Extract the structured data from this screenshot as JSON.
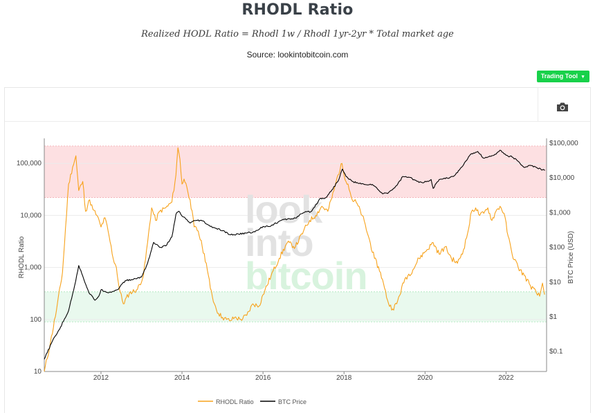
{
  "header": {
    "title": "RHODL Ratio",
    "formula": "Realized HODL Ratio = Rhodl 1w / Rhodl 1yr-2yr * Total market age",
    "source": "Source: lookintobitcoin.com"
  },
  "toolbar": {
    "trading_tool_label": "Trading Tool",
    "caret": "▼"
  },
  "watermark": {
    "line1": "look",
    "line2": "into",
    "line3": "bitcoin"
  },
  "colors": {
    "rhodl": "#f7a21b",
    "btc": "#000000",
    "red_band": "#fde0e2",
    "green_band": "#e9f9ee",
    "button": "#18d14a"
  },
  "chart_data": {
    "type": "line",
    "title": "RHODL Ratio",
    "xlabel": "",
    "ylabel_left": "RHODL Ratio",
    "ylabel_right": "BTC Price (USD)",
    "x_range": [
      2010.6,
      2023.0
    ],
    "x_ticks": [
      {
        "value": 2012,
        "label": "2012"
      },
      {
        "value": 2014,
        "label": "2014"
      },
      {
        "value": 2016,
        "label": "2016"
      },
      {
        "value": 2018,
        "label": "2018"
      },
      {
        "value": 2020,
        "label": "2020"
      },
      {
        "value": 2022,
        "label": "2022"
      }
    ],
    "y_left_scale": "log",
    "y_left_range": [
      10,
      300000
    ],
    "y_left_ticks": [
      {
        "value": 10,
        "label": "10"
      },
      {
        "value": 100,
        "label": "100"
      },
      {
        "value": 1000,
        "label": "1,000"
      },
      {
        "value": 10000,
        "label": "10,000"
      },
      {
        "value": 100000,
        "label": "100,000"
      }
    ],
    "y_right_scale": "log",
    "y_right_range": [
      0.02,
      200000
    ],
    "y_right_ticks": [
      {
        "value": 0.1,
        "label": "$0.1"
      },
      {
        "value": 1,
        "label": "$1"
      },
      {
        "value": 10,
        "label": "$10"
      },
      {
        "value": 100,
        "label": "$100"
      },
      {
        "value": 1000,
        "label": "$1,000"
      },
      {
        "value": 10000,
        "label": "$10,000"
      },
      {
        "value": 100000,
        "label": "$100,000"
      }
    ],
    "bands": [
      {
        "name": "overheated",
        "axis": "left",
        "from": 22000,
        "to": 250000,
        "color": "#fde0e2"
      },
      {
        "name": "undervalued",
        "axis": "left",
        "from": 90,
        "to": 340,
        "color": "#e9f9ee"
      }
    ],
    "legend_position": "bottom-center",
    "series": [
      {
        "name": "RHODL Ratio",
        "axis": "left",
        "color": "#f7a21b",
        "x": [
          2010.6,
          2010.75,
          2010.9,
          2011.05,
          2011.2,
          2011.3,
          2011.38,
          2011.45,
          2011.55,
          2011.62,
          2011.72,
          2011.8,
          2011.9,
          2012.0,
          2012.1,
          2012.2,
          2012.3,
          2012.38,
          2012.45,
          2012.55,
          2012.7,
          2012.9,
          2013.05,
          2013.15,
          2013.25,
          2013.35,
          2013.45,
          2013.6,
          2013.75,
          2013.85,
          2013.9,
          2013.95,
          2014.0,
          2014.05,
          2014.12,
          2014.2,
          2014.3,
          2014.4,
          2014.5,
          2014.6,
          2014.7,
          2014.8,
          2014.9,
          2015.0,
          2015.1,
          2015.2,
          2015.3,
          2015.45,
          2015.6,
          2015.75,
          2015.9,
          2016.0,
          2016.2,
          2016.4,
          2016.6,
          2016.8,
          2017.0,
          2017.15,
          2017.3,
          2017.45,
          2017.6,
          2017.75,
          2017.85,
          2017.95,
          2018.0,
          2018.1,
          2018.2,
          2018.3,
          2018.45,
          2018.6,
          2018.75,
          2018.9,
          2019.0,
          2019.1,
          2019.2,
          2019.3,
          2019.5,
          2019.7,
          2019.85,
          2020.0,
          2020.2,
          2020.35,
          2020.5,
          2020.65,
          2020.8,
          2020.95,
          2021.05,
          2021.15,
          2021.25,
          2021.35,
          2021.45,
          2021.55,
          2021.65,
          2021.75,
          2021.85,
          2021.95,
          2022.05,
          2022.15,
          2022.3,
          2022.45,
          2022.6,
          2022.75,
          2022.83,
          2022.9,
          2022.95
        ],
        "values": [
          10,
          35,
          150,
          800,
          40000,
          85000,
          140000,
          30000,
          45000,
          12000,
          20000,
          13000,
          10000,
          6000,
          9000,
          4000,
          1500,
          1000,
          400,
          200,
          320,
          380,
          700,
          3000,
          14000,
          8000,
          12000,
          14000,
          18000,
          60000,
          200000,
          120000,
          40000,
          50000,
          35000,
          20000,
          6000,
          5000,
          2500,
          1200,
          400,
          200,
          130,
          110,
          100,
          95,
          110,
          100,
          120,
          200,
          180,
          300,
          700,
          1500,
          3000,
          2500,
          5000,
          8000,
          10000,
          15000,
          12000,
          30000,
          60000,
          100000,
          60000,
          40000,
          20000,
          18000,
          10000,
          4000,
          1500,
          800,
          400,
          200,
          160,
          200,
          600,
          900,
          1500,
          2000,
          3000,
          1800,
          2500,
          1500,
          1200,
          2200,
          4500,
          12000,
          14000,
          10000,
          11000,
          14000,
          8000,
          12000,
          15000,
          11000,
          4000,
          1800,
          1000,
          700,
          450,
          320,
          280,
          500,
          300
        ]
      },
      {
        "name": "BTC Price",
        "axis": "right",
        "color": "#000000",
        "x": [
          2010.6,
          2010.8,
          2011.0,
          2011.2,
          2011.35,
          2011.45,
          2011.55,
          2011.7,
          2011.85,
          2011.95,
          2012.0,
          2012.2,
          2012.4,
          2012.6,
          2012.8,
          2013.0,
          2013.15,
          2013.3,
          2013.45,
          2013.6,
          2013.75,
          2013.85,
          2013.92,
          2014.0,
          2014.1,
          2014.2,
          2014.35,
          2014.5,
          2014.7,
          2014.85,
          2015.0,
          2015.2,
          2015.4,
          2015.6,
          2015.8,
          2016.0,
          2016.2,
          2016.45,
          2016.6,
          2016.8,
          2017.0,
          2017.2,
          2017.4,
          2017.55,
          2017.7,
          2017.85,
          2017.96,
          2018.05,
          2018.2,
          2018.35,
          2018.5,
          2018.7,
          2018.85,
          2018.95,
          2019.1,
          2019.3,
          2019.45,
          2019.6,
          2019.8,
          2019.95,
          2020.15,
          2020.2,
          2020.35,
          2020.5,
          2020.7,
          2020.85,
          2021.0,
          2021.15,
          2021.3,
          2021.45,
          2021.55,
          2021.7,
          2021.85,
          2022.0,
          2022.15,
          2022.3,
          2022.45,
          2022.6,
          2022.75,
          2022.9,
          2022.96
        ],
        "values": [
          0.06,
          0.2,
          0.5,
          1.5,
          8,
          30,
          15,
          5,
          3,
          4,
          6,
          5,
          6,
          11,
          12,
          14,
          35,
          140,
          100,
          110,
          200,
          900,
          1100,
          800,
          650,
          500,
          600,
          580,
          400,
          350,
          300,
          230,
          240,
          260,
          280,
          400,
          420,
          600,
          650,
          700,
          1000,
          1100,
          2500,
          2700,
          4500,
          8000,
          18000,
          11000,
          8000,
          7000,
          6500,
          6500,
          4500,
          3500,
          3800,
          6000,
          11000,
          10500,
          8000,
          7200,
          9000,
          5000,
          9000,
          9500,
          11000,
          17000,
          30000,
          50000,
          58000,
          37000,
          40000,
          45000,
          63000,
          45000,
          40000,
          30000,
          20000,
          23000,
          20000,
          17000,
          16500
        ]
      }
    ]
  },
  "legend": {
    "rhodl_label": "RHODL Ratio",
    "btc_label": "BTC Price"
  }
}
